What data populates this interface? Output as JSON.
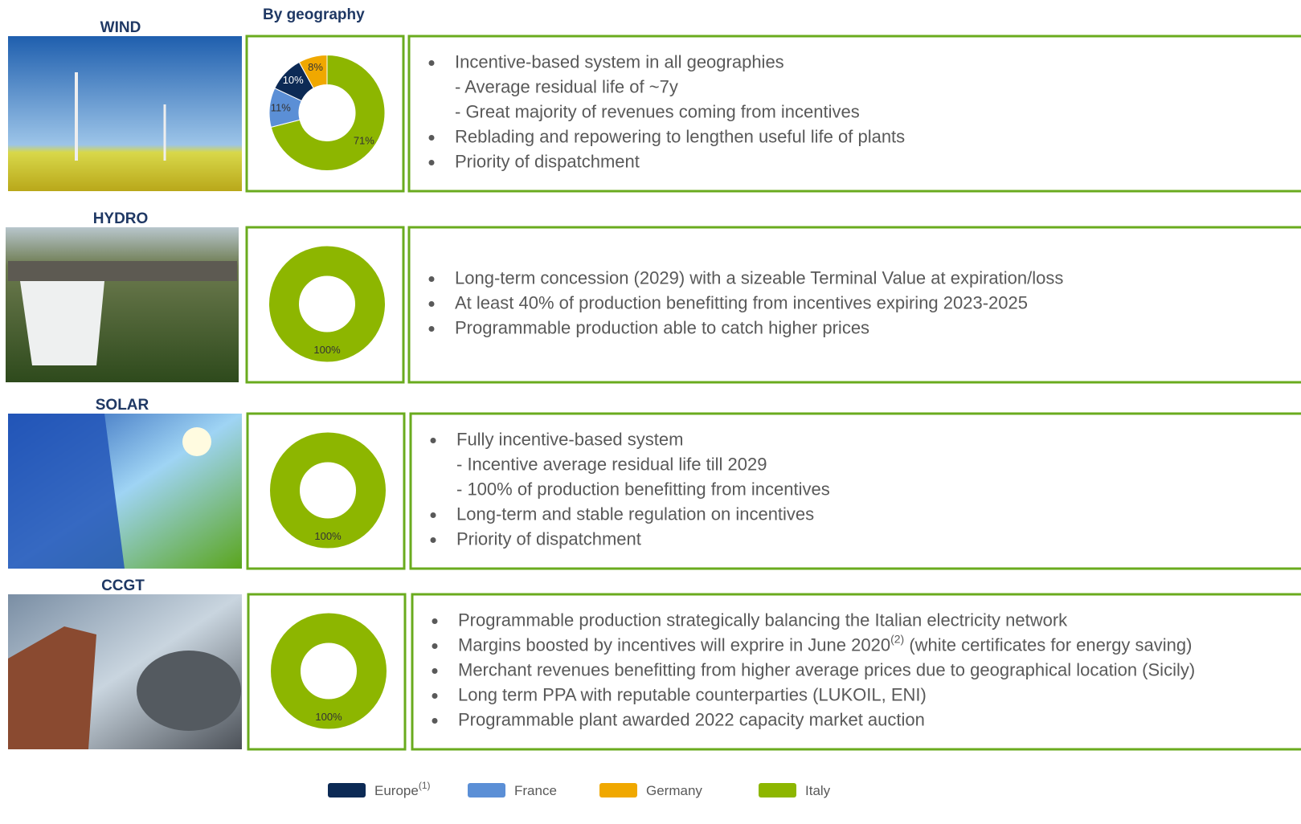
{
  "title": "By geography",
  "legend": [
    {
      "name": "Europe",
      "color": "#0c2a55"
    },
    {
      "name": "France",
      "color": "#5b8fd6"
    },
    {
      "name": "Germany",
      "color": "#f0a800"
    },
    {
      "name": "Italy",
      "color": "#8db600"
    }
  ],
  "legend_note": "(1)",
  "sections": [
    {
      "label": "WIND",
      "bullets": [
        {
          "text": "Incentive-based system in all geographies",
          "subs": [
            "- Average residual life of ~7y",
            "- Great majority of revenues coming from incentives"
          ]
        },
        {
          "text": "Reblading and repowering to lengthen useful life of plants"
        },
        {
          "text": "Priority of dispatchment"
        }
      ]
    },
    {
      "label": "HYDRO",
      "bullets": [
        {
          "text": "Long-term concession (2029) with a sizeable Terminal Value at expiration/loss"
        },
        {
          "text": "At least 40% of production benefitting from incentives expiring 2023-2025"
        },
        {
          "text": "Programmable production able to catch higher prices"
        }
      ]
    },
    {
      "label": "SOLAR",
      "bullets": [
        {
          "text": "Fully incentive-based system",
          "subs": [
            "- Incentive average residual life till 2029",
            "- 100% of production benefitting from incentives"
          ]
        },
        {
          "text": "Long-term and stable regulation on incentives"
        },
        {
          "text": "Priority of dispatchment"
        }
      ]
    },
    {
      "label": "CCGT",
      "bullets": [
        {
          "text": "Programmable production strategically balancing the Italian electricity network"
        },
        {
          "text": "Margins boosted by incentives will exprire in June 2020",
          "sup": "(2)",
          "rest": " (white certificates for energy saving)"
        },
        {
          "text": "Merchant revenues benefitting from higher average prices due to geographical location (Sicily)"
        },
        {
          "text": "Long term PPA with reputable counterparties (LUKOIL, ENI)"
        },
        {
          "text": "Programmable plant awarded 2022 capacity market auction"
        }
      ]
    }
  ],
  "chart_data": [
    {
      "type": "donut",
      "categories": [
        "Italy",
        "France",
        "Europe",
        "Germany"
      ],
      "values": [
        71,
        11,
        10,
        8
      ],
      "value_labels": [
        "71%",
        "11%",
        "10%",
        "8%"
      ],
      "colors": [
        "#8db600",
        "#5b8fd6",
        "#0c2a55",
        "#f0a800"
      ]
    },
    {
      "type": "donut",
      "categories": [
        "Italy"
      ],
      "values": [
        100
      ],
      "value_labels": [
        "100%"
      ],
      "colors": [
        "#8db600"
      ]
    },
    {
      "type": "donut",
      "categories": [
        "Italy"
      ],
      "values": [
        100
      ],
      "value_labels": [
        "100%"
      ],
      "colors": [
        "#8db600"
      ]
    },
    {
      "type": "donut",
      "categories": [
        "Italy"
      ],
      "values": [
        100
      ],
      "value_labels": [
        "100%"
      ],
      "colors": [
        "#8db600"
      ]
    }
  ]
}
